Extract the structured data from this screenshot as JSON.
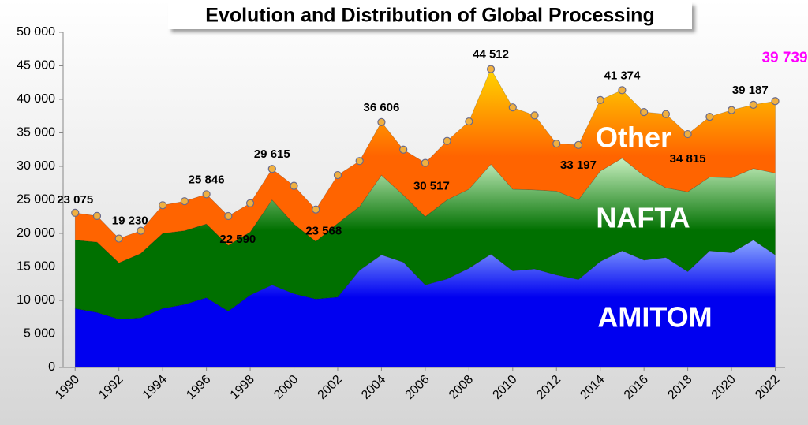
{
  "chart_data": {
    "type": "stacked-area",
    "title": "Evolution and Distribution of Global Processing",
    "x": [
      1990,
      1991,
      1992,
      1993,
      1994,
      1995,
      1996,
      1997,
      1998,
      1999,
      2000,
      2001,
      2002,
      2003,
      2004,
      2005,
      2006,
      2007,
      2008,
      2009,
      2010,
      2011,
      2012,
      2013,
      2014,
      2015,
      2016,
      2017,
      2018,
      2019,
      2020,
      2021,
      2022
    ],
    "series": [
      {
        "name": "AMITOM",
        "color": "#0000f0",
        "color_top": "#8aa8ff",
        "values": [
          8800,
          8200,
          7200,
          7400,
          8800,
          9400,
          10400,
          8400,
          10800,
          12300,
          11000,
          10200,
          10500,
          14500,
          16800,
          15700,
          12300,
          13200,
          14800,
          16900,
          14400,
          14700,
          13800,
          13100,
          15800,
          17400,
          16000,
          16400,
          14300,
          17400,
          17100,
          19000,
          16800
        ]
      },
      {
        "name": "NAFTA",
        "color": "#007000",
        "color_top": "#c8f0c0",
        "values": [
          10200,
          10500,
          8400,
          9600,
          11200,
          11000,
          11000,
          9800,
          9400,
          12700,
          10400,
          8600,
          11000,
          9500,
          11900,
          10000,
          10200,
          11800,
          11800,
          13400,
          12200,
          11800,
          12500,
          11900,
          13500,
          13800,
          12600,
          10400,
          11900,
          11000,
          11200,
          10700,
          12200
        ]
      },
      {
        "name": "Other",
        "color": "#ff6400",
        "color_top": "#ffd400",
        "values": [
          4075,
          3900,
          3630,
          3400,
          4200,
          4400,
          4446,
          4390,
          4300,
          4615,
          5700,
          4768,
          7200,
          6800,
          7906,
          6800,
          8017,
          8800,
          10100,
          14212,
          12200,
          11100,
          7100,
          8197,
          10600,
          10174,
          9500,
          11000,
          8615,
          9000,
          10100,
          9487,
          10739
        ]
      }
    ],
    "annotations": [
      {
        "x": 1990,
        "text": "23 075"
      },
      {
        "x": 1992,
        "text": "19 230"
      },
      {
        "x": 1996,
        "text": "25 846"
      },
      {
        "x": 1997,
        "text": "22 590"
      },
      {
        "x": 1999,
        "text": "29 615"
      },
      {
        "x": 2001,
        "text": "23 568"
      },
      {
        "x": 2004,
        "text": "36 606"
      },
      {
        "x": 2006,
        "text": "30 517"
      },
      {
        "x": 2009,
        "text": "44 512"
      },
      {
        "x": 2013,
        "text": "33 197"
      },
      {
        "x": 2015,
        "text": "41 374"
      },
      {
        "x": 2018,
        "text": "34 815"
      },
      {
        "x": 2021,
        "text": "39 187"
      },
      {
        "x": 2022,
        "text": "39 739",
        "color": "#ff00ff"
      }
    ],
    "xlim": [
      1989.45,
      2022.45
    ],
    "xticks": [
      1990,
      1992,
      1994,
      1996,
      1998,
      2000,
      2002,
      2004,
      2006,
      2008,
      2010,
      2012,
      2014,
      2016,
      2018,
      2020,
      2022
    ],
    "ylim": [
      0,
      50000
    ],
    "yticks": [
      0,
      {
        "value": 5000,
        "label": "5 000"
      },
      {
        "value": 10000,
        "label": "10 000"
      },
      {
        "value": 15000,
        "label": "15 000"
      },
      {
        "value": 20000,
        "label": "20 000"
      },
      {
        "value": 25000,
        "label": "25 000"
      },
      {
        "value": 30000,
        "label": "30 000"
      },
      {
        "value": 35000,
        "label": "35 000"
      },
      {
        "value": 40000,
        "label": "40 000"
      },
      {
        "value": 45000,
        "label": "45 000"
      },
      {
        "value": 50000,
        "label": "50 000"
      }
    ],
    "grid": false
  }
}
